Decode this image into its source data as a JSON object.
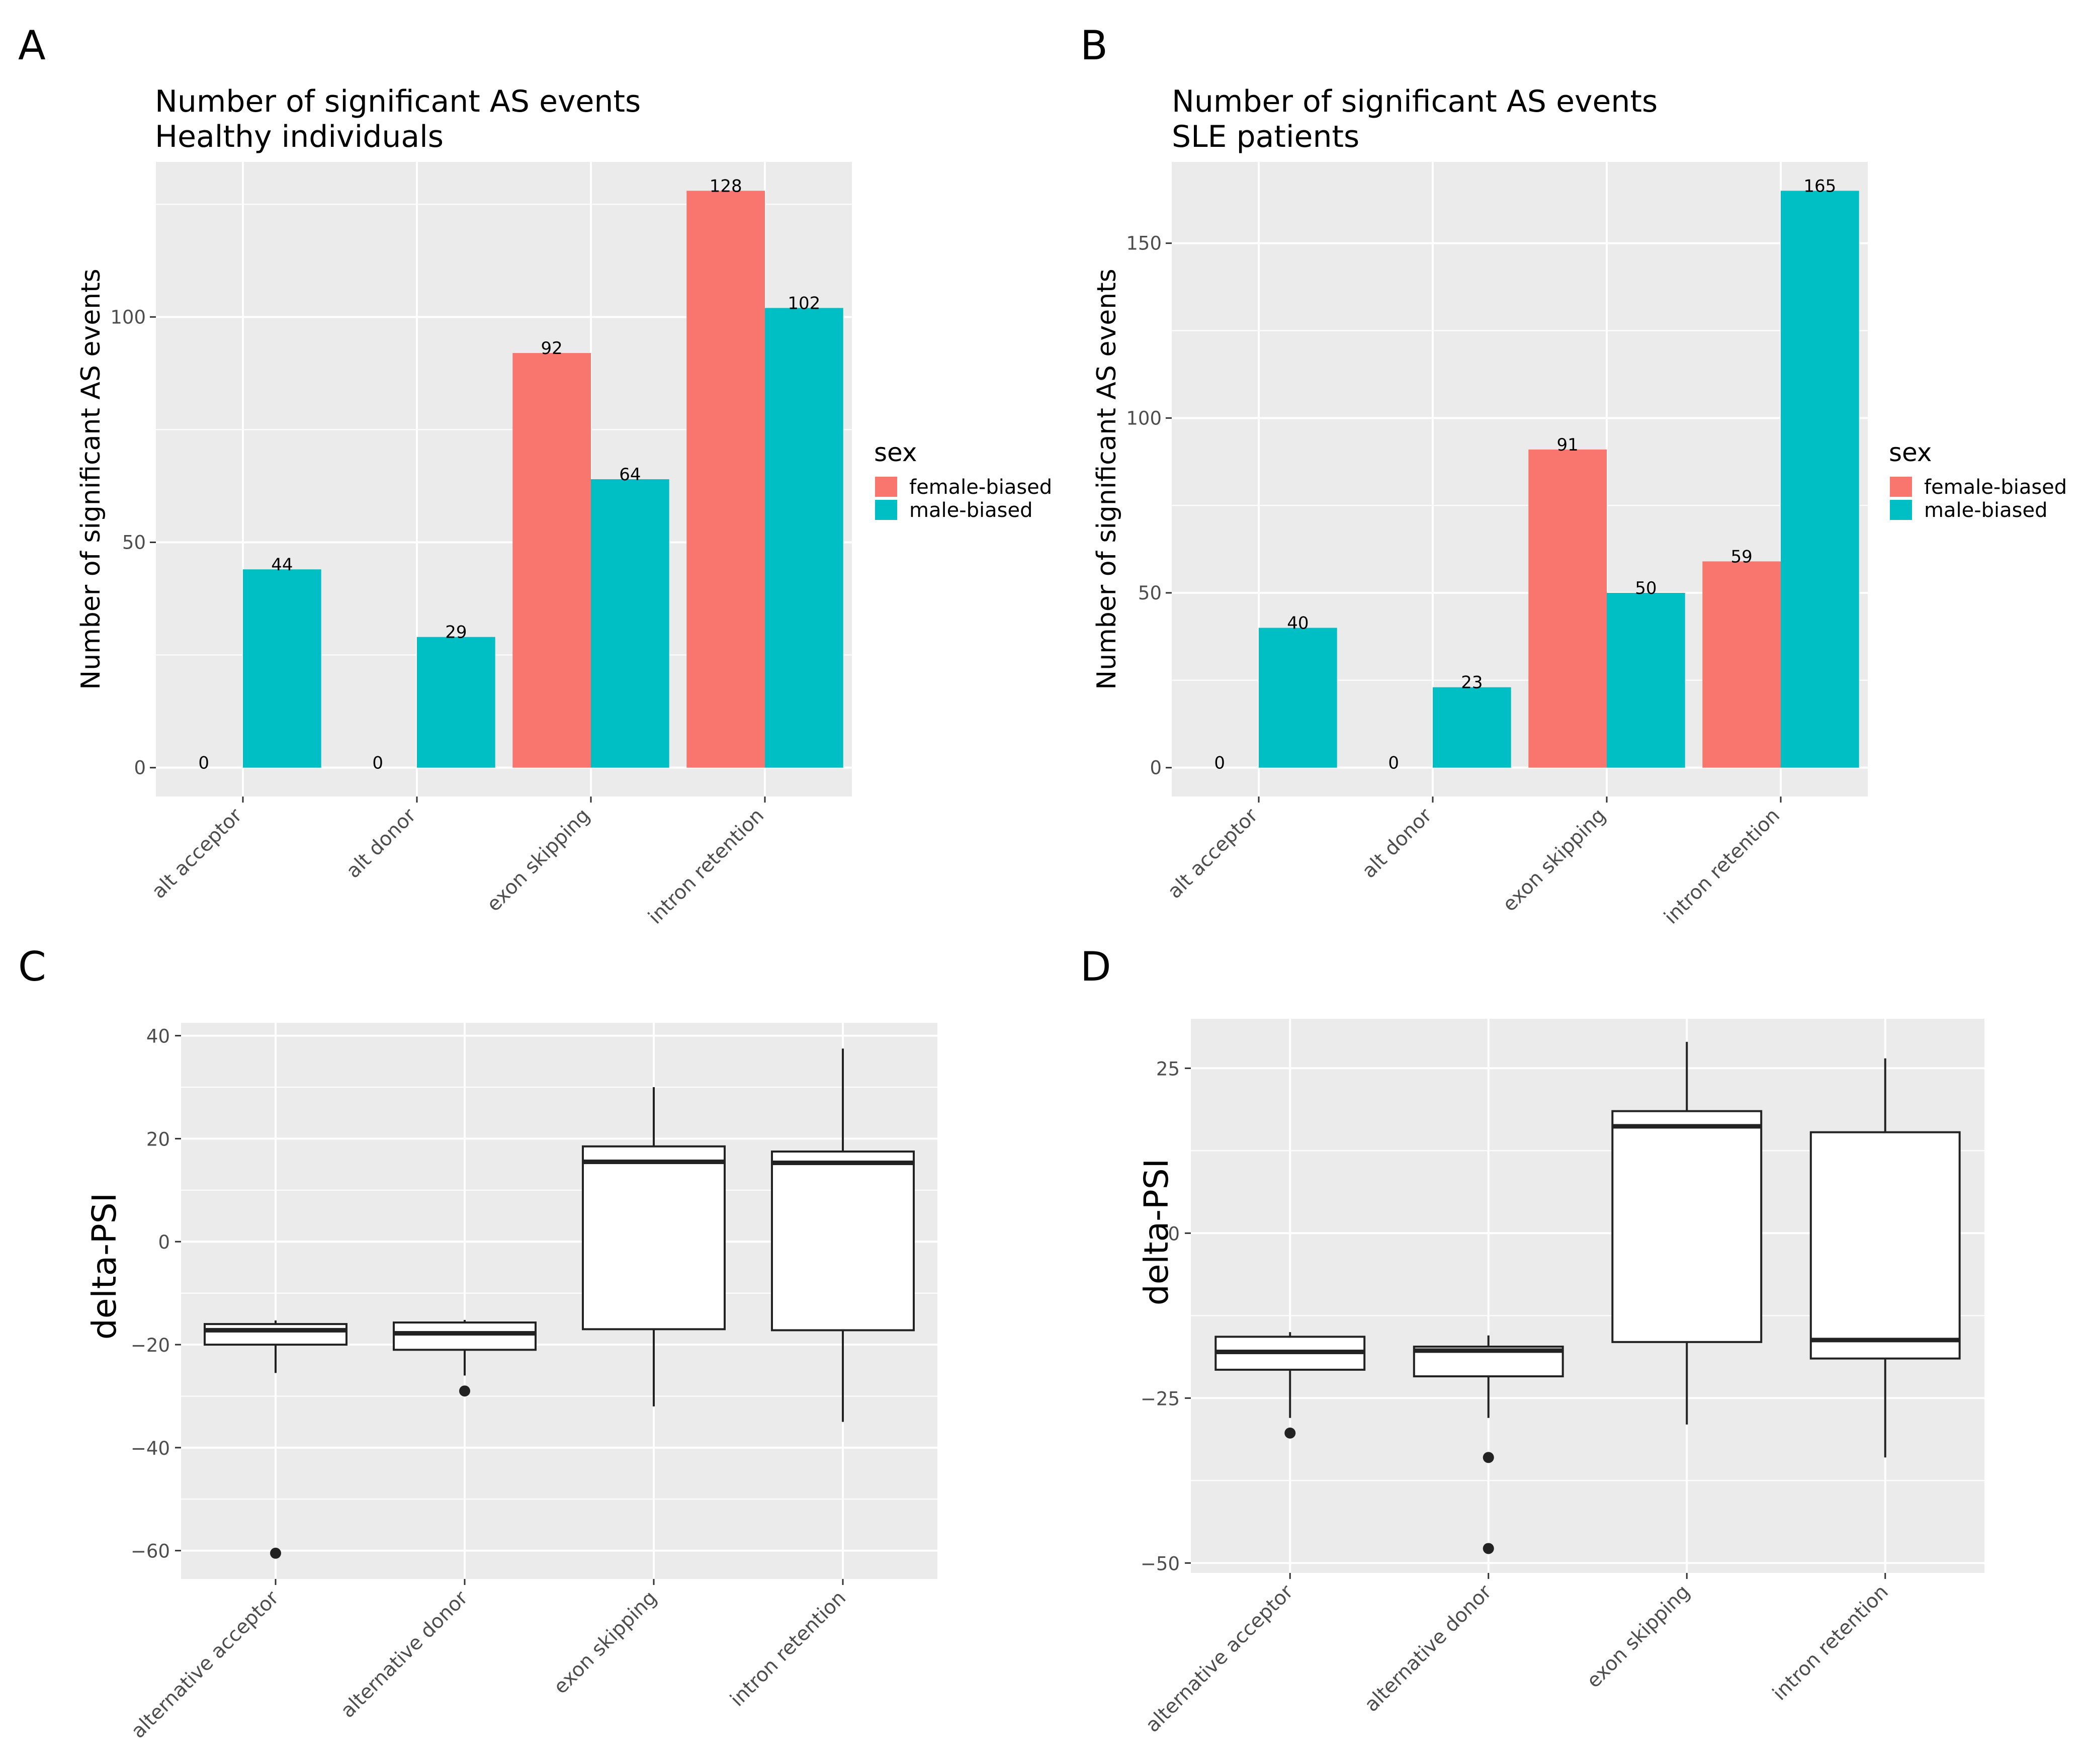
{
  "colors": {
    "female": "#F8766D",
    "male": "#00BFC4",
    "panel_bg": "#EBEBEB",
    "grid": "#FFFFFF",
    "text": "#000000",
    "tick_text": "#4D4D4D"
  },
  "chart_data": [
    {
      "id": "A",
      "type": "bar",
      "panel_label": "A",
      "title": "Number of significant AS events",
      "subtitle": "Healthy individuals",
      "xlabel": "",
      "ylabel": "Number of significant AS events",
      "categories": [
        "alt acceptor",
        "alt donor",
        "exon skipping",
        "intron retention"
      ],
      "series": [
        {
          "name": "female-biased",
          "color": "#F8766D",
          "values": [
            0,
            0,
            92,
            128
          ]
        },
        {
          "name": "male-biased",
          "color": "#00BFC4",
          "values": [
            44,
            29,
            64,
            102
          ]
        }
      ],
      "yticks": [
        0,
        50,
        100
      ],
      "ytick_labels": [
        "0",
        "50",
        "100"
      ],
      "ylim": [
        -6.4,
        134.4
      ],
      "legend": {
        "title": "sex",
        "position": "right",
        "labels": [
          "female-biased",
          "male-biased"
        ]
      }
    },
    {
      "id": "B",
      "type": "bar",
      "panel_label": "B",
      "title": "Number of significant AS events",
      "subtitle": "SLE patients",
      "xlabel": "",
      "ylabel": "Number of significant AS events",
      "categories": [
        "alt acceptor",
        "alt donor",
        "exon skipping",
        "intron retention"
      ],
      "series": [
        {
          "name": "female-biased",
          "color": "#F8766D",
          "values": [
            0,
            0,
            91,
            59
          ]
        },
        {
          "name": "male-biased",
          "color": "#00BFC4",
          "values": [
            40,
            23,
            50,
            165
          ]
        }
      ],
      "yticks": [
        0,
        50,
        100,
        150
      ],
      "ytick_labels": [
        "0",
        "50",
        "100",
        "150"
      ],
      "ylim": [
        -8.25,
        173.25
      ],
      "legend": {
        "title": "sex",
        "position": "right",
        "labels": [
          "female-biased",
          "male-biased"
        ]
      }
    },
    {
      "id": "C",
      "type": "box",
      "panel_label": "C",
      "xlabel": "",
      "ylabel": "delta-PSI",
      "categories": [
        "alternative acceptor",
        "alternative donor",
        "exon skipping",
        "intron retention"
      ],
      "boxes": [
        {
          "q1": -20,
          "median": -17.2,
          "q3": -16,
          "low": -25.5,
          "high": -15.3,
          "outliers": [
            -60.5
          ]
        },
        {
          "q1": -21,
          "median": -17.8,
          "q3": -15.7,
          "low": -26,
          "high": -15.2,
          "outliers": [
            -29
          ]
        },
        {
          "q1": -17,
          "median": 15.5,
          "q3": 18.5,
          "low": -32,
          "high": 30,
          "outliers": []
        },
        {
          "q1": -17.2,
          "median": 15.3,
          "q3": 17.5,
          "low": -35,
          "high": 37.5,
          "outliers": []
        }
      ],
      "yticks": [
        -60,
        -40,
        -20,
        0,
        20,
        40
      ],
      "ytick_labels": [
        "−60",
        "−40",
        "−20",
        "0",
        "20",
        "40"
      ],
      "ylim": [
        -65.5,
        42.5
      ]
    },
    {
      "id": "D",
      "type": "box",
      "panel_label": "D",
      "xlabel": "",
      "ylabel": "delta-PSI",
      "categories": [
        "alternative acceptor",
        "alternative donor",
        "exon skipping",
        "intron retention"
      ],
      "boxes": [
        {
          "q1": -20.7,
          "median": -18,
          "q3": -15.7,
          "low": -28,
          "high": -15,
          "outliers": [
            -30.3
          ]
        },
        {
          "q1": -21.7,
          "median": -17.8,
          "q3": -17.2,
          "low": -28,
          "high": -15.5,
          "outliers": [
            -34,
            -47.8
          ]
        },
        {
          "q1": -16.5,
          "median": 16.2,
          "q3": 18.5,
          "low": -29,
          "high": 29,
          "outliers": []
        },
        {
          "q1": -19,
          "median": -16.2,
          "q3": 15.3,
          "low": -34,
          "high": 26.5,
          "outliers": []
        }
      ],
      "yticks": [
        -50,
        -25,
        0,
        25
      ],
      "ytick_labels": [
        "−50",
        "−25",
        "0",
        "25"
      ],
      "ylim": [
        -51.5,
        32.5
      ]
    }
  ]
}
